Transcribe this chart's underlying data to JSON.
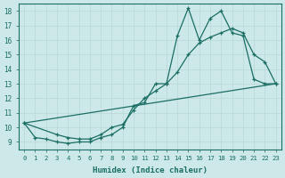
{
  "xlabel": "Humidex (Indice chaleur)",
  "bg_color": "#cce8e8",
  "line_color": "#1a6e64",
  "grid_color": "#b8d8d8",
  "xlim": [
    -0.5,
    23.5
  ],
  "ylim": [
    8.5,
    18.5
  ],
  "xticks": [
    0,
    1,
    2,
    3,
    4,
    5,
    6,
    7,
    8,
    9,
    10,
    11,
    12,
    13,
    14,
    15,
    16,
    17,
    18,
    19,
    20,
    21,
    22,
    23
  ],
  "yticks": [
    9,
    10,
    11,
    12,
    13,
    14,
    15,
    16,
    17,
    18
  ],
  "line1_x": [
    0,
    1,
    2,
    3,
    4,
    5,
    6,
    7,
    8,
    9,
    10,
    11,
    12,
    13,
    14,
    15,
    16,
    17,
    18,
    19,
    20,
    21,
    22,
    23
  ],
  "line1_y": [
    10.3,
    9.3,
    9.2,
    9.0,
    8.9,
    9.0,
    9.0,
    9.3,
    9.5,
    10.0,
    11.5,
    11.7,
    13.0,
    13.0,
    16.3,
    18.2,
    16.0,
    17.5,
    18.0,
    16.5,
    16.3,
    13.3,
    13.0,
    13.0
  ],
  "line2_x": [
    0,
    3,
    4,
    5,
    6,
    7,
    8,
    9,
    10,
    11,
    12,
    13,
    14,
    15,
    16,
    17,
    18,
    19,
    20,
    21,
    22,
    23
  ],
  "line2_y": [
    10.3,
    9.5,
    9.3,
    9.2,
    9.2,
    9.5,
    10.0,
    10.2,
    11.2,
    12.0,
    12.5,
    13.0,
    13.8,
    15.0,
    15.8,
    16.2,
    16.5,
    16.8,
    16.5,
    15.0,
    14.5,
    13.0
  ],
  "line3_x": [
    0,
    23
  ],
  "line3_y": [
    10.3,
    13.0
  ]
}
